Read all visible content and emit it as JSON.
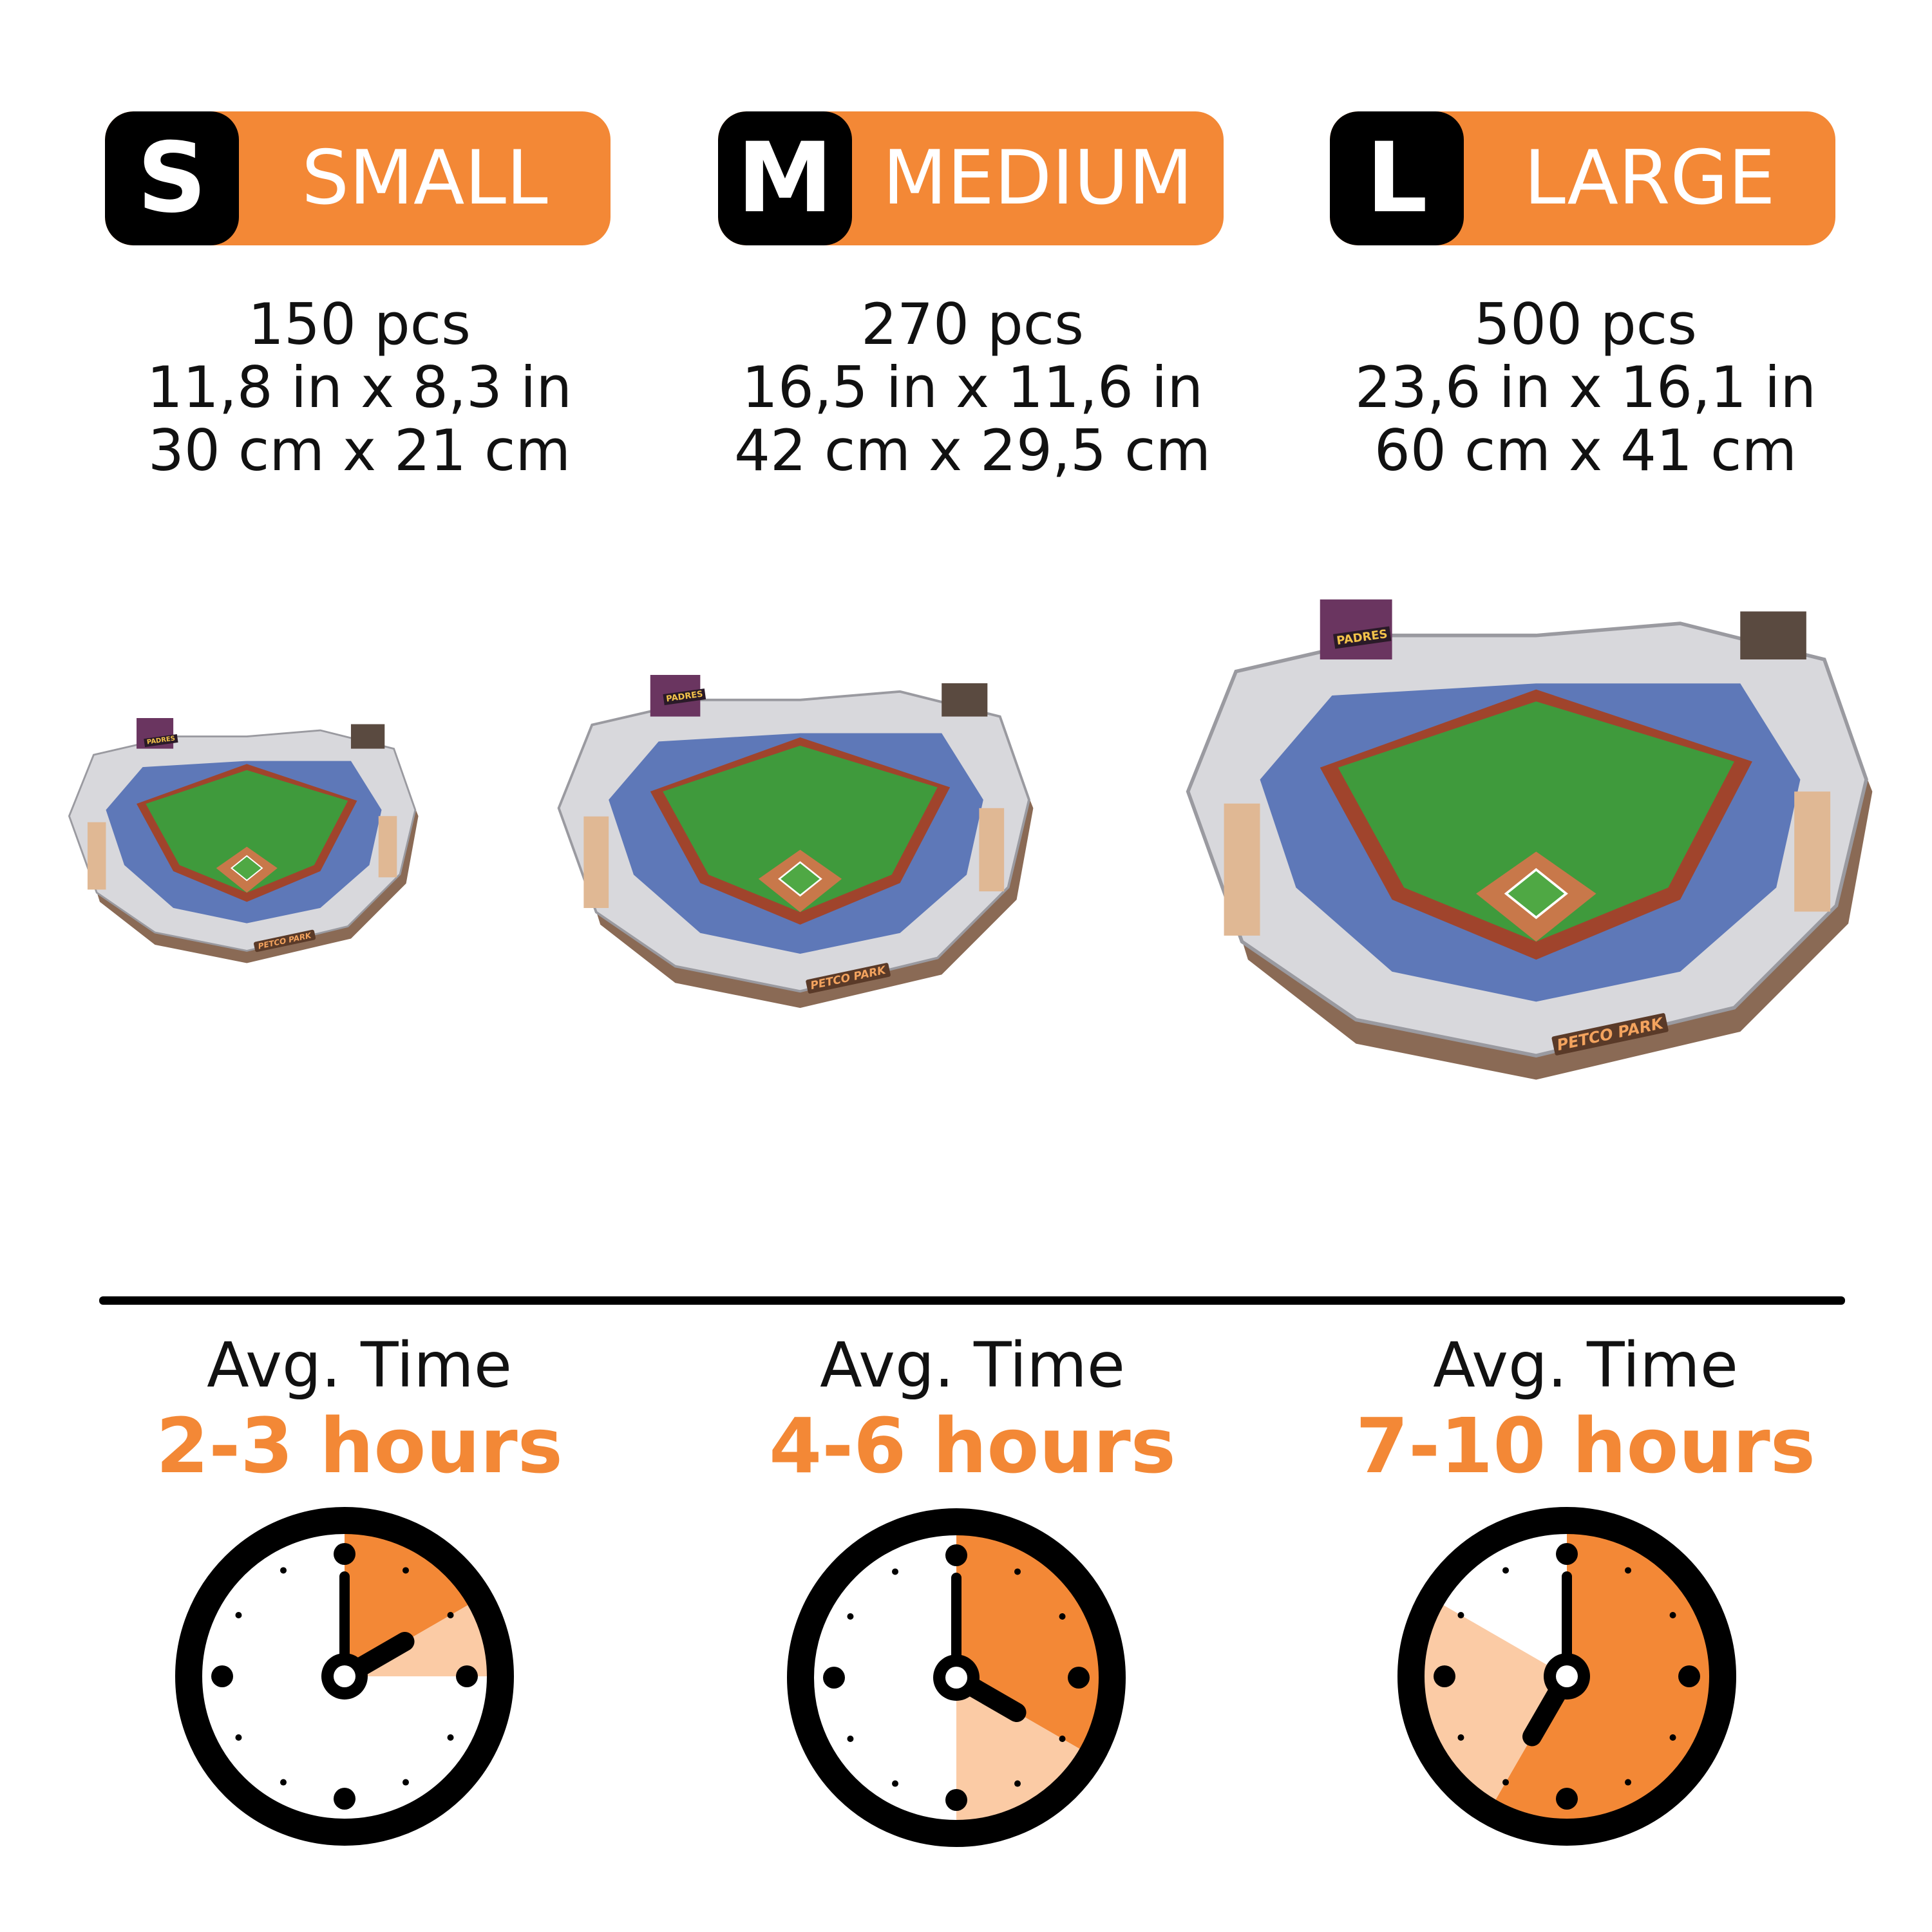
{
  "colors": {
    "accent": "#f38836",
    "accent_light": "#fbcba5",
    "dark": "#000000"
  },
  "sizes": [
    {
      "letter": "S",
      "name": "SMALL",
      "pieces": "150 pcs",
      "inches": "11,8 in x 8,3 in",
      "cm": "30 cm x 21 cm",
      "avg_label": "Avg. Time",
      "hours": "2-3 hours",
      "clock": {
        "min_hours": 2,
        "max_hours": 3
      }
    },
    {
      "letter": "M",
      "name": "MEDIUM",
      "pieces": "270 pcs",
      "inches": "16,5 in x 11,6 in",
      "cm": "42 cm x 29,5 cm",
      "avg_label": "Avg. Time",
      "hours": "4-6 hours",
      "clock": {
        "min_hours": 4,
        "max_hours": 6
      }
    },
    {
      "letter": "L",
      "name": "LARGE",
      "pieces": "500 pcs",
      "inches": "23,6 in x 16,1 in",
      "cm": "60 cm x 41 cm",
      "avg_label": "Avg. Time",
      "hours": "7-10 hours",
      "clock": {
        "min_hours": 7,
        "max_hours": 10
      }
    }
  ],
  "stadium": {
    "signage": "PETCO PARK",
    "scoreboard": "PADRES"
  }
}
